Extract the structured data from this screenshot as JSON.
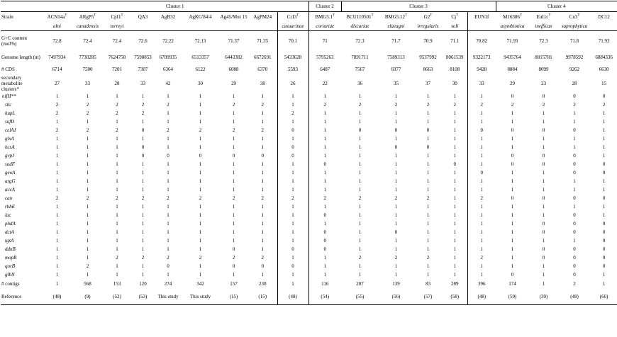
{
  "clusters": [
    {
      "label": "Cluster 1"
    },
    {
      "label": "Cluster 2"
    },
    {
      "label": "Cluster 3"
    },
    {
      "label": "Cluster 4"
    }
  ],
  "header_label": "Strain",
  "strains": [
    {
      "name": "ACN14a",
      "sup": "T"
    },
    {
      "name": "ARgP5",
      "sup": "T"
    },
    {
      "name": "CpI1",
      "sup": "T"
    },
    {
      "name": "QA3",
      "sup": ""
    },
    {
      "name": "AgB32",
      "sup": ""
    },
    {
      "name": "AgKG'84/4",
      "sup": ""
    },
    {
      "name": "Ag45/Mut 15",
      "sup": ""
    },
    {
      "name": "AgPM24",
      "sup": ""
    },
    {
      "name": "CcI3",
      "sup": "T"
    },
    {
      "name": "BMG5.1",
      "sup": "T"
    },
    {
      "name": "BCU110501",
      "sup": "T"
    },
    {
      "name": "BMG5.12",
      "sup": "T"
    },
    {
      "name": "G2",
      "sup": "T"
    },
    {
      "name": "Cj",
      "sup": "T"
    },
    {
      "name": "EUN1f",
      "sup": ""
    },
    {
      "name": "M16386",
      "sup": "T"
    },
    {
      "name": "EuI1c",
      "sup": "T"
    },
    {
      "name": "Cn3",
      "sup": "T"
    },
    {
      "name": "DC12",
      "sup": ""
    }
  ],
  "species": [
    "alni",
    "canadensis",
    "torreyi",
    "",
    "",
    "",
    "",
    "",
    "casuarinae",
    "coriariae",
    "discariae",
    "elaeagni",
    "irregularis",
    "soli",
    "",
    "asymbiotica",
    "inefficax",
    "saprophytica",
    ""
  ],
  "rows": {
    "gc_label": "G+C content (mol%)",
    "gc": [
      "72.8",
      "72.4",
      "72.4",
      "72.6",
      "72.22",
      "72.13",
      "71.37",
      "71.35",
      "70.1",
      "71",
      "72.3",
      "71.7",
      "70.9",
      "71.1",
      "70.82",
      "71.93",
      "72.3",
      "71.8",
      "71.93"
    ],
    "glen_label": "Genome length (nt)",
    "glen": [
      "7497934",
      "7730285",
      "7624758",
      "7590853",
      "6709935",
      "6513357",
      "6443382",
      "6672691",
      "5433628",
      "5795263",
      "7891711",
      "7589313",
      "9537992",
      "8061539",
      "9322173",
      "9435764",
      "8815781",
      "9978592",
      "6884336"
    ],
    "cds_label": "# CDS",
    "cds": [
      "6714",
      "7500",
      "7201",
      "7307",
      "6364",
      "6122",
      "6088",
      "6370",
      "5593",
      "6487",
      "7567",
      "6977",
      "8663",
      "8108",
      "9428",
      "8884",
      "8099",
      "9262",
      "6630"
    ],
    "smc_label": "secondary metabolite clusters*",
    "smc": [
      "27",
      "33",
      "28",
      "33",
      "42",
      "30",
      "29",
      "38",
      "26",
      "22",
      "36",
      "35",
      "37",
      "30",
      "33",
      "29",
      "23",
      "28",
      "15"
    ],
    "genes": [
      {
        "name": "nifH**",
        "vals": [
          "1",
          "1",
          "1",
          "1",
          "1",
          "1",
          "1",
          "1",
          "1",
          "1",
          "1",
          "1",
          "1",
          "1",
          "1",
          "0",
          "0",
          "0",
          "0"
        ]
      },
      {
        "name": "shc",
        "vals": [
          "2",
          "2",
          "2",
          "2",
          "2",
          "1",
          "2",
          "2",
          "1",
          "2",
          "2",
          "2",
          "2",
          "2",
          "2",
          "2",
          "2",
          "2",
          "2"
        ]
      },
      {
        "name": "hupL",
        "vals": [
          "2",
          "2",
          "2",
          "2",
          "1",
          "1",
          "1",
          "1",
          "2",
          "1",
          "1",
          "1",
          "1",
          "1",
          "1",
          "1",
          "1",
          "1",
          "1"
        ]
      },
      {
        "name": "sufD",
        "vals": [
          "1",
          "1",
          "1",
          "1",
          "1",
          "1",
          "1",
          "1",
          "1",
          "1",
          "1",
          "1",
          "1",
          "1",
          "1",
          "1",
          "1",
          "1",
          "1"
        ]
      },
      {
        "name": "celA1",
        "vals": [
          "2",
          "2",
          "2",
          "0",
          "2",
          "2",
          "2",
          "2",
          "0",
          "1",
          "0",
          "0",
          "0",
          "1",
          "0",
          "0",
          "0",
          "0",
          "1"
        ]
      },
      {
        "name": "glxA",
        "vals": [
          "1",
          "1",
          "1",
          "1",
          "1",
          "1",
          "1",
          "1",
          "1",
          "1",
          "1",
          "1",
          "1",
          "1",
          "1",
          "1",
          "1",
          "1",
          "1"
        ]
      },
      {
        "name": "bcsA",
        "vals": [
          "1",
          "1",
          "1",
          "0",
          "1",
          "1",
          "1",
          "1",
          "0",
          "1",
          "1",
          "0",
          "0",
          "1",
          "1",
          "1",
          "1",
          "1",
          "1"
        ]
      },
      {
        "name": "gvpJ",
        "vals": [
          "1",
          "1",
          "1",
          "0",
          "0",
          "0",
          "0",
          "0",
          "0",
          "1",
          "1",
          "1",
          "1",
          "1",
          "1",
          "0",
          "0",
          "0",
          "1"
        ]
      },
      {
        "name": "sodF",
        "vals": [
          "1",
          "1",
          "1",
          "1",
          "1",
          "1",
          "1",
          "1",
          "1",
          "0",
          "1",
          "1",
          "1",
          "0",
          "1",
          "0",
          "0",
          "0",
          "0"
        ]
      },
      {
        "name": "geoA",
        "vals": [
          "1",
          "1",
          "1",
          "1",
          "1",
          "1",
          "1",
          "1",
          "1",
          "1",
          "1",
          "1",
          "1",
          "1",
          "0",
          "1",
          "1",
          "0",
          "0"
        ]
      },
      {
        "name": "argG",
        "vals": [
          "1",
          "1",
          "1",
          "1",
          "1",
          "1",
          "1",
          "1",
          "1",
          "1",
          "1",
          "1",
          "1",
          "1",
          "1",
          "1",
          "1",
          "1",
          "1"
        ]
      },
      {
        "name": "accA",
        "vals": [
          "1",
          "1",
          "1",
          "1",
          "1",
          "1",
          "1",
          "1",
          "1",
          "1",
          "1",
          "1",
          "1",
          "1",
          "1",
          "1",
          "1",
          "1",
          "1"
        ]
      },
      {
        "name": "can",
        "vals": [
          "2",
          "2",
          "2",
          "2",
          "2",
          "2",
          "2",
          "2",
          "2",
          "2",
          "2",
          "2",
          "2",
          "1",
          "2",
          "0",
          "0",
          "0",
          "0"
        ]
      },
      {
        "name": "rhbE",
        "vals": [
          "1",
          "1",
          "1",
          "1",
          "1",
          "1",
          "1",
          "1",
          "1",
          "1",
          "1",
          "1",
          "1",
          "1",
          "1",
          "1",
          "1",
          "1",
          "1"
        ]
      },
      {
        "name": "lac",
        "vals": [
          "1",
          "1",
          "1",
          "1",
          "1",
          "1",
          "1",
          "1",
          "1",
          "0",
          "1",
          "1",
          "1",
          "1",
          "1",
          "1",
          "1",
          "0",
          "1"
        ]
      },
      {
        "name": "phdA",
        "vals": [
          "1",
          "1",
          "1",
          "1",
          "1",
          "1",
          "1",
          "1",
          "1",
          "1",
          "1",
          "1",
          "1",
          "1",
          "1",
          "1",
          "0",
          "0",
          "0"
        ]
      },
      {
        "name": "dctA",
        "vals": [
          "1",
          "1",
          "1",
          "1",
          "1",
          "1",
          "1",
          "1",
          "1",
          "0",
          "1",
          "0",
          "1",
          "1",
          "1",
          "1",
          "0",
          "0",
          "0"
        ]
      },
      {
        "name": "tgsA",
        "vals": [
          "1",
          "1",
          "1",
          "1",
          "1",
          "1",
          "1",
          "1",
          "1",
          "0",
          "1",
          "1",
          "1",
          "1",
          "1",
          "1",
          "1",
          "1",
          "0"
        ]
      },
      {
        "name": "ddnB",
        "vals": [
          "1",
          "1",
          "1",
          "1",
          "1",
          "1",
          "0",
          "1",
          "0",
          "0",
          "1",
          "1",
          "1",
          "1",
          "1",
          "1",
          "0",
          "0",
          "0"
        ]
      },
      {
        "name": "mopB",
        "vals": [
          "1",
          "1",
          "2",
          "2",
          "2",
          "2",
          "2",
          "2",
          "1",
          "1",
          "2",
          "2",
          "2",
          "1",
          "2",
          "1",
          "0",
          "0",
          "0"
        ]
      },
      {
        "name": "qorB",
        "vals": [
          "1",
          "2",
          "1",
          "1",
          "0",
          "1",
          "0",
          "0",
          "0",
          "1",
          "1",
          "1",
          "1",
          "1",
          "1",
          "1",
          "1",
          "0",
          "0"
        ]
      },
      {
        "name": "glbN",
        "vals": [
          "1",
          "1",
          "1",
          "1",
          "1",
          "1",
          "1",
          "1",
          "1",
          "1",
          "1",
          "1",
          "1",
          "1",
          "1",
          "0",
          "1",
          "0",
          "1"
        ]
      }
    ],
    "contigs_label": "# contigs",
    "contigs": [
      "1",
      "568",
      "153",
      "120",
      "274",
      "342",
      "157",
      "230",
      "1",
      "116",
      "207",
      "139",
      "83",
      "289",
      "396",
      "174",
      "1",
      "2",
      "1"
    ],
    "ref_label": "Reference",
    "refs": [
      "(48)",
      "(9)",
      "(52)",
      "(53)",
      "This study",
      "This study",
      "(15)",
      "(15)",
      "(48)",
      "(54)",
      "(55)",
      "(56)",
      "(57)",
      "(58)",
      "(48)",
      "(59)",
      "(39)",
      "(48)",
      "(60)"
    ]
  }
}
